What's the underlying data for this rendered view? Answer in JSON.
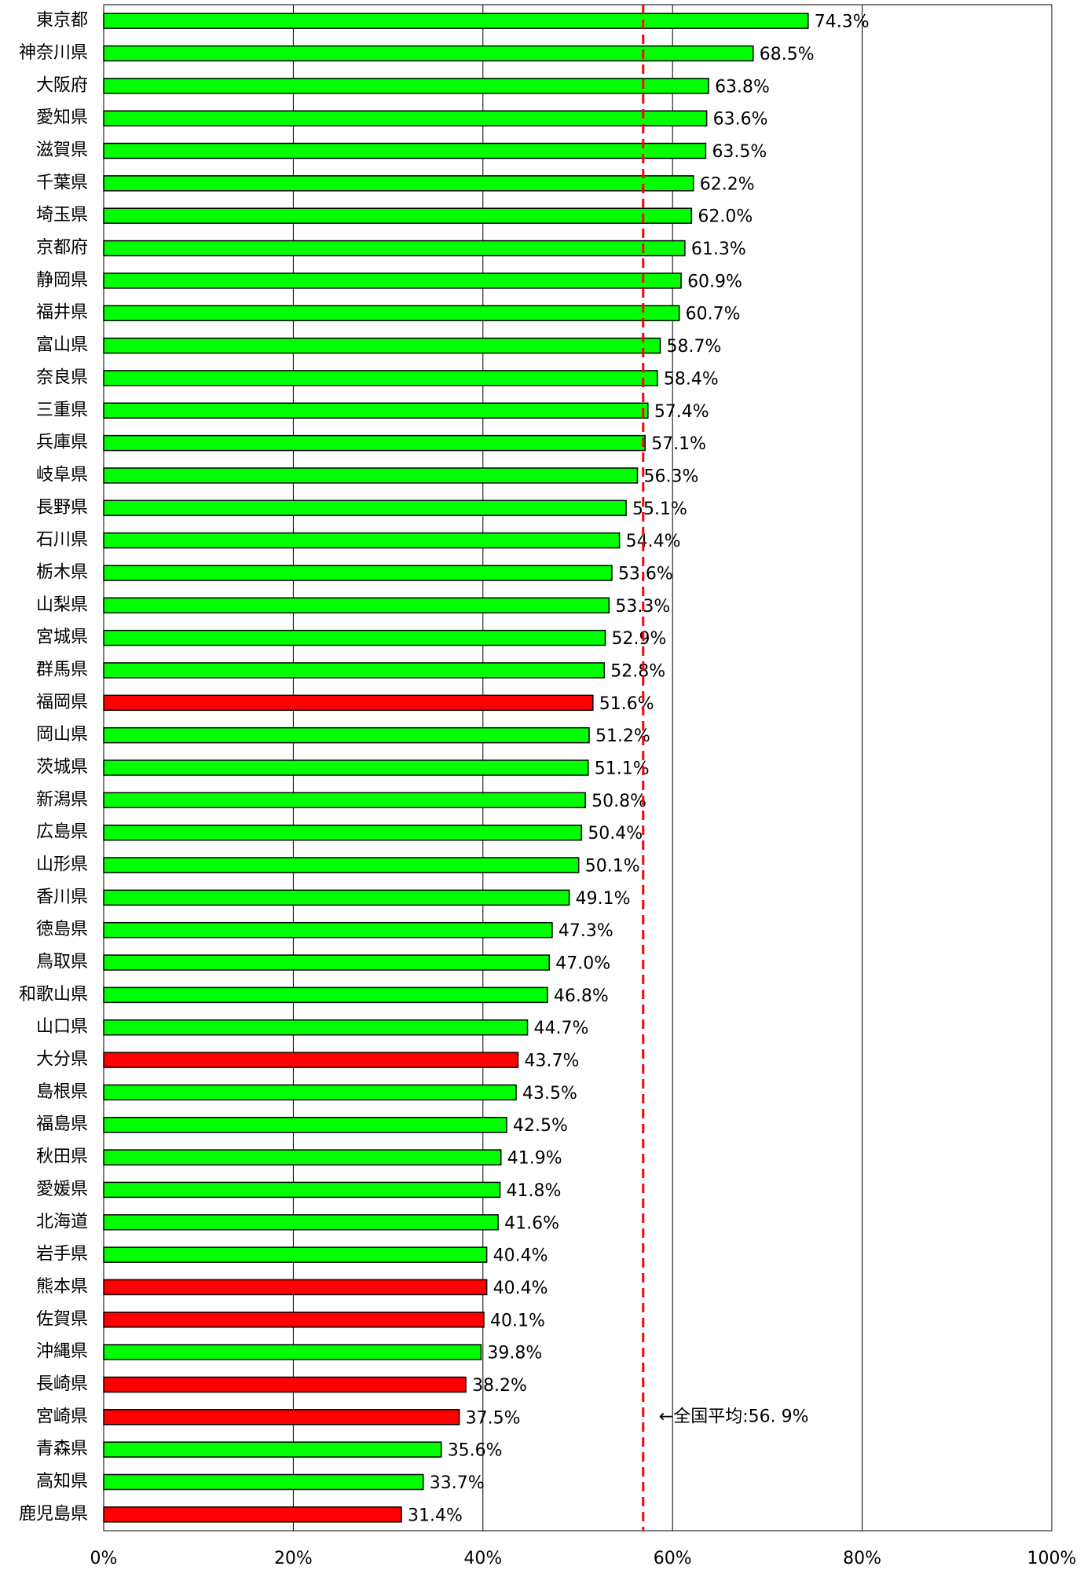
{
  "chart_data": {
    "type": "bar",
    "orientation": "horizontal",
    "categories": [
      "東京都",
      "神奈川県",
      "大阪府",
      "愛知県",
      "滋賀県",
      "千葉県",
      "埼玉県",
      "京都府",
      "静岡県",
      "福井県",
      "富山県",
      "奈良県",
      "三重県",
      "兵庫県",
      "岐阜県",
      "長野県",
      "石川県",
      "栃木県",
      "山梨県",
      "宮城県",
      "群馬県",
      "福岡県",
      "岡山県",
      "茨城県",
      "新潟県",
      "広島県",
      "山形県",
      "香川県",
      "徳島県",
      "鳥取県",
      "和歌山県",
      "山口県",
      "大分県",
      "島根県",
      "福島県",
      "秋田県",
      "愛媛県",
      "北海道",
      "岩手県",
      "熊本県",
      "佐賀県",
      "沖縄県",
      "長崎県",
      "宮崎県",
      "青森県",
      "高知県",
      "鹿児島県"
    ],
    "values": [
      74.3,
      68.5,
      63.8,
      63.6,
      63.5,
      62.2,
      62,
      61.3,
      60.9,
      60.7,
      58.7,
      58.4,
      57.4,
      57.1,
      56.3,
      55.1,
      54.4,
      53.6,
      53.3,
      52.9,
      52.8,
      51.6,
      51.2,
      51.1,
      50.8,
      50.4,
      50.1,
      49.1,
      47.3,
      47,
      46.8,
      44.7,
      43.7,
      43.5,
      42.5,
      41.9,
      41.8,
      41.6,
      40.4,
      40.4,
      40.1,
      39.8,
      38.2,
      37.5,
      35.6,
      33.7,
      31.4
    ],
    "value_labels": [
      "74.3%",
      "68.5%",
      "63.8%",
      "63.6%",
      "63.5%",
      "62.2%",
      "62.0%",
      "61.3%",
      "60.9%",
      "60.7%",
      "58.7%",
      "58.4%",
      "57.4%",
      "57.1%",
      "56.3%",
      "55.1%",
      "54.4%",
      "53.6%",
      "53.3%",
      "52.9%",
      "52.8%",
      "51.6%",
      "51.2%",
      "51.1%",
      "50.8%",
      "50.4%",
      "50.1%",
      "49.1%",
      "47.3%",
      "47.0%",
      "46.8%",
      "44.7%",
      "43.7%",
      "43.5%",
      "42.5%",
      "41.9%",
      "41.8%",
      "41.6%",
      "40.4%",
      "40.4%",
      "40.1%",
      "39.8%",
      "38.2%",
      "37.5%",
      "35.6%",
      "33.7%",
      "31.4%"
    ],
    "colors": [
      "#00ff00",
      "#00ff00",
      "#00ff00",
      "#00ff00",
      "#00ff00",
      "#00ff00",
      "#00ff00",
      "#00ff00",
      "#00ff00",
      "#00ff00",
      "#00ff00",
      "#00ff00",
      "#00ff00",
      "#00ff00",
      "#00ff00",
      "#00ff00",
      "#00ff00",
      "#00ff00",
      "#00ff00",
      "#00ff00",
      "#00ff00",
      "#ff0000",
      "#00ff00",
      "#00ff00",
      "#00ff00",
      "#00ff00",
      "#00ff00",
      "#00ff00",
      "#00ff00",
      "#00ff00",
      "#00ff00",
      "#00ff00",
      "#ff0000",
      "#00ff00",
      "#00ff00",
      "#00ff00",
      "#00ff00",
      "#00ff00",
      "#00ff00",
      "#ff0000",
      "#ff0000",
      "#00ff00",
      "#ff0000",
      "#ff0000",
      "#00ff00",
      "#00ff00",
      "#ff0000"
    ],
    "xlim": [
      0,
      100
    ],
    "xticks": [
      {
        "value": 0,
        "label": "0%"
      },
      {
        "value": 20,
        "label": "20%"
      },
      {
        "value": 40,
        "label": "40%"
      },
      {
        "value": 60,
        "label": "60%"
      },
      {
        "value": 80,
        "label": "80%"
      },
      {
        "value": 100,
        "label": "100%"
      }
    ],
    "grid": true,
    "average": {
      "value": 56.9,
      "label": "←全国平均:56. 9%",
      "color": "#ff0000"
    }
  }
}
